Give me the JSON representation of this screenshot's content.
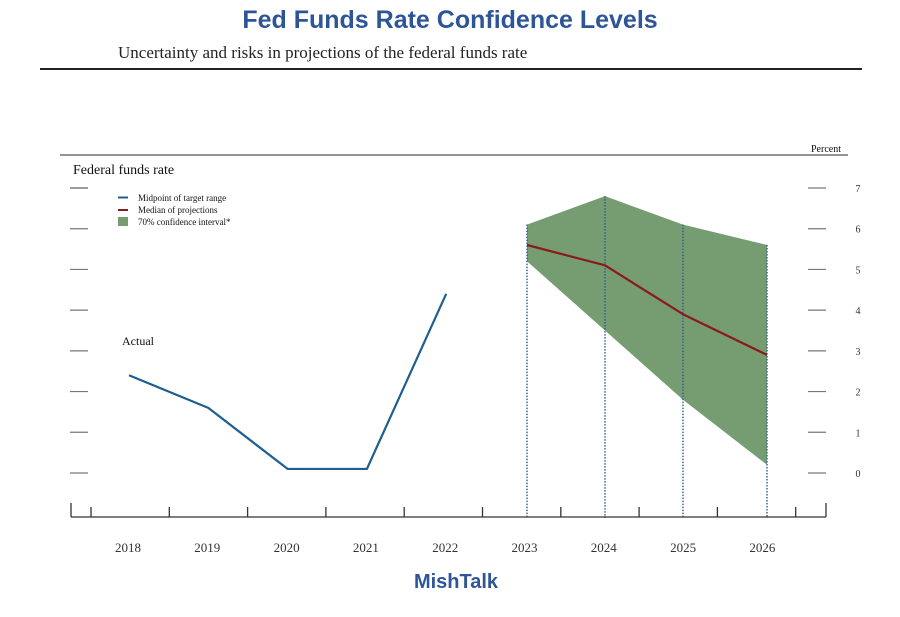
{
  "header": {
    "title": "Fed Funds Rate Confidence Levels",
    "subtitle": "Uncertainty and risks in projections of the federal funds rate"
  },
  "footer": {
    "brand": "MishTalk"
  },
  "chart_data": {
    "type": "line",
    "title": "Federal funds rate",
    "ylabel": "Percent",
    "xlabel": "",
    "ylim": [
      0,
      7
    ],
    "yticks": [
      "0",
      "1",
      "2",
      "3",
      "4",
      "5",
      "6",
      "7"
    ],
    "categories": [
      "2018",
      "2019",
      "2020",
      "2021",
      "2022",
      "2023",
      "2024",
      "2025",
      "2026"
    ],
    "annotation": "Actual",
    "legend": {
      "placement": "top-left",
      "items": [
        {
          "label": "Midpoint of target range",
          "color": "#1f5f8f",
          "kind": "line"
        },
        {
          "label": "Median of projections",
          "color": "#8b1a1a",
          "kind": "line"
        },
        {
          "label": "70% confidence interval*",
          "color": "#769d72",
          "kind": "area"
        }
      ]
    },
    "series": [
      {
        "name": "Midpoint of target range",
        "color": "#1f5f8f",
        "x": [
          "2018",
          "2019",
          "2020",
          "2021",
          "2022"
        ],
        "values": [
          2.4,
          1.6,
          0.1,
          0.1,
          4.4
        ]
      },
      {
        "name": "Median of projections",
        "color": "#8b1a1a",
        "x": [
          "2023",
          "2024",
          "2025",
          "2026"
        ],
        "values": [
          5.6,
          5.1,
          3.9,
          2.9
        ]
      },
      {
        "name": "70% confidence interval*",
        "color": "#769d72",
        "x": [
          "2023",
          "2024",
          "2025",
          "2026"
        ],
        "upper": [
          6.1,
          6.8,
          6.1,
          5.6
        ],
        "lower": [
          5.2,
          3.5,
          1.8,
          0.2
        ]
      }
    ],
    "grid": false
  }
}
